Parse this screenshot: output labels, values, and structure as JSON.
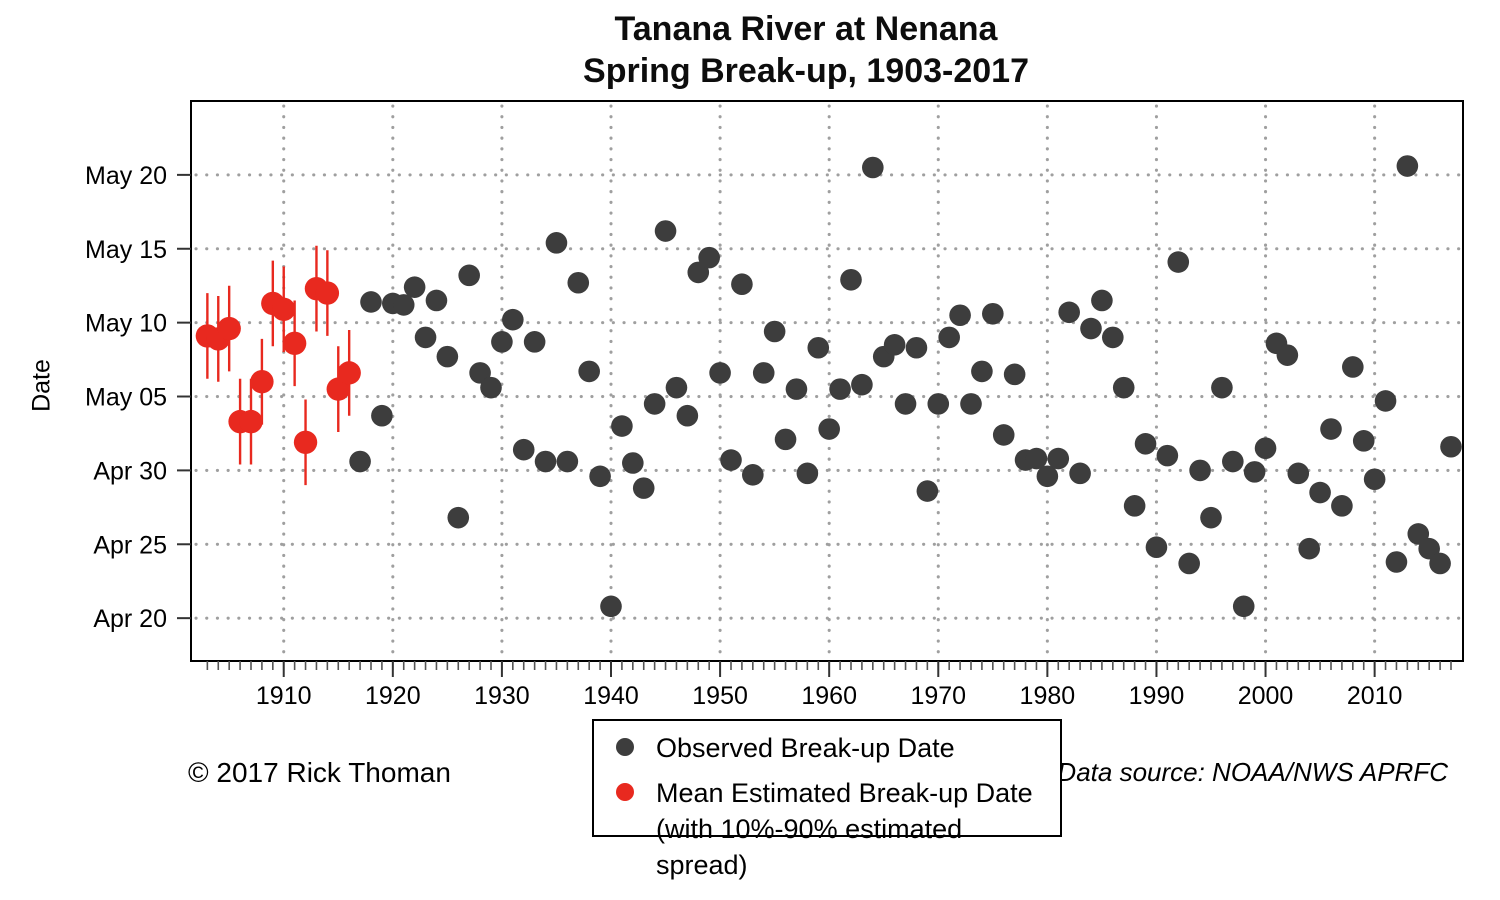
{
  "title": {
    "line1": "Tanana River at Nenana",
    "line2": "Spring Break-up, 1903-2017"
  },
  "y_axis_title": "Date",
  "footer": {
    "left": "© 2017 Rick Thoman",
    "right": "Data source: NOAA/NWS APRFC"
  },
  "legend_note": "(with 10%-90% estimated spread)",
  "chart_data": {
    "type": "scatter",
    "title": "Tanana River at Nenana — Spring Break-up, 1903-2017",
    "xlabel": "",
    "ylabel": "Date",
    "grid": true,
    "legend_position": "bottom-center",
    "x_range": [
      1901.5,
      2018.1
    ],
    "y_units": "days after April 20",
    "y_range": [
      -2.9,
      35.0
    ],
    "x_major_ticks": [
      1910,
      1920,
      1930,
      1940,
      1950,
      1960,
      1970,
      1980,
      1990,
      2000,
      2010
    ],
    "x_minor_ticks": {
      "from": 1903,
      "to": 2017,
      "step": 1
    },
    "y_ticks": [
      {
        "label": "May 20",
        "d": 30
      },
      {
        "label": "May 15",
        "d": 25
      },
      {
        "label": "May 10",
        "d": 20
      },
      {
        "label": "May 05",
        "d": 15
      },
      {
        "label": "Apr 30",
        "d": 10
      },
      {
        "label": "Apr 25",
        "d": 5
      },
      {
        "label": "Apr 20",
        "d": 0
      }
    ],
    "series": [
      {
        "name": "Observed Break-up Date",
        "color": "#3d3d3d",
        "marker": "circle",
        "marker_radius": 10.8,
        "points": [
          {
            "year": 1917,
            "date": "Apr 30",
            "d": 10.6
          },
          {
            "year": 1918,
            "date": "May 11",
            "d": 21.4
          },
          {
            "year": 1919,
            "date": "May 3",
            "d": 13.7
          },
          {
            "year": 1920,
            "date": "May 11",
            "d": 21.3
          },
          {
            "year": 1921,
            "date": "May 11",
            "d": 21.2
          },
          {
            "year": 1922,
            "date": "May 12",
            "d": 22.4
          },
          {
            "year": 1923,
            "date": "May 9",
            "d": 19.0
          },
          {
            "year": 1924,
            "date": "May 11",
            "d": 21.5
          },
          {
            "year": 1925,
            "date": "May 7",
            "d": 17.7
          },
          {
            "year": 1926,
            "date": "Apr 26",
            "d": 6.8
          },
          {
            "year": 1927,
            "date": "May 13",
            "d": 23.2
          },
          {
            "year": 1928,
            "date": "May 6",
            "d": 16.6
          },
          {
            "year": 1929,
            "date": "May 5",
            "d": 15.6
          },
          {
            "year": 1930,
            "date": "May 8",
            "d": 18.7
          },
          {
            "year": 1931,
            "date": "May 10",
            "d": 20.2
          },
          {
            "year": 1932,
            "date": "May 1",
            "d": 11.4
          },
          {
            "year": 1933,
            "date": "May 8",
            "d": 18.7
          },
          {
            "year": 1934,
            "date": "Apr 30",
            "d": 10.6
          },
          {
            "year": 1935,
            "date": "May 15",
            "d": 25.4
          },
          {
            "year": 1936,
            "date": "Apr 30",
            "d": 10.6
          },
          {
            "year": 1937,
            "date": "May 12",
            "d": 22.7
          },
          {
            "year": 1938,
            "date": "May 6",
            "d": 16.7
          },
          {
            "year": 1939,
            "date": "Apr 29",
            "d": 9.6
          },
          {
            "year": 1940,
            "date": "Apr 20",
            "d": 0.8
          },
          {
            "year": 1941,
            "date": "May 3",
            "d": 13.0
          },
          {
            "year": 1942,
            "date": "Apr 30",
            "d": 10.5
          },
          {
            "year": 1943,
            "date": "Apr 28",
            "d": 8.8
          },
          {
            "year": 1944,
            "date": "May 4",
            "d": 14.5
          },
          {
            "year": 1945,
            "date": "May 16",
            "d": 26.2
          },
          {
            "year": 1946,
            "date": "May 5",
            "d": 15.6
          },
          {
            "year": 1947,
            "date": "May 3",
            "d": 13.7
          },
          {
            "year": 1948,
            "date": "May 13",
            "d": 23.4
          },
          {
            "year": 1949,
            "date": "May 14",
            "d": 24.4
          },
          {
            "year": 1950,
            "date": "May 6",
            "d": 16.6
          },
          {
            "year": 1951,
            "date": "Apr 30",
            "d": 10.7
          },
          {
            "year": 1952,
            "date": "May 12",
            "d": 22.6
          },
          {
            "year": 1953,
            "date": "Apr 29",
            "d": 9.7
          },
          {
            "year": 1954,
            "date": "May 6",
            "d": 16.6
          },
          {
            "year": 1955,
            "date": "May 9",
            "d": 19.4
          },
          {
            "year": 1956,
            "date": "May 2",
            "d": 12.1
          },
          {
            "year": 1957,
            "date": "May 5",
            "d": 15.5
          },
          {
            "year": 1958,
            "date": "Apr 29",
            "d": 9.8
          },
          {
            "year": 1959,
            "date": "May 8",
            "d": 18.3
          },
          {
            "year": 1960,
            "date": "May 2",
            "d": 12.8
          },
          {
            "year": 1961,
            "date": "May 5",
            "d": 15.5
          },
          {
            "year": 1962,
            "date": "May 12",
            "d": 22.9
          },
          {
            "year": 1963,
            "date": "May 5",
            "d": 15.8
          },
          {
            "year": 1964,
            "date": "May 20",
            "d": 30.5
          },
          {
            "year": 1965,
            "date": "May 7",
            "d": 17.7
          },
          {
            "year": 1966,
            "date": "May 8",
            "d": 18.5
          },
          {
            "year": 1967,
            "date": "May 4",
            "d": 14.5
          },
          {
            "year": 1968,
            "date": "May 8",
            "d": 18.3
          },
          {
            "year": 1969,
            "date": "Apr 28",
            "d": 8.6
          },
          {
            "year": 1970,
            "date": "May 4",
            "d": 14.5
          },
          {
            "year": 1971,
            "date": "May 8",
            "d": 19.0
          },
          {
            "year": 1972,
            "date": "May 10",
            "d": 20.5
          },
          {
            "year": 1973,
            "date": "May 4",
            "d": 14.5
          },
          {
            "year": 1974,
            "date": "May 6",
            "d": 16.7
          },
          {
            "year": 1975,
            "date": "May 10",
            "d": 20.6
          },
          {
            "year": 1976,
            "date": "May 2",
            "d": 12.4
          },
          {
            "year": 1977,
            "date": "May 6",
            "d": 16.5
          },
          {
            "year": 1978,
            "date": "Apr 30",
            "d": 10.7
          },
          {
            "year": 1979,
            "date": "Apr 30",
            "d": 10.8
          },
          {
            "year": 1980,
            "date": "Apr 29",
            "d": 9.6
          },
          {
            "year": 1981,
            "date": "Apr 30",
            "d": 10.8
          },
          {
            "year": 1982,
            "date": "May 10",
            "d": 20.7
          },
          {
            "year": 1983,
            "date": "Apr 29",
            "d": 9.8
          },
          {
            "year": 1984,
            "date": "May 9",
            "d": 19.6
          },
          {
            "year": 1985,
            "date": "May 11",
            "d": 21.5
          },
          {
            "year": 1986,
            "date": "May 8",
            "d": 19.0
          },
          {
            "year": 1987,
            "date": "May 5",
            "d": 15.6
          },
          {
            "year": 1988,
            "date": "Apr 27",
            "d": 7.6
          },
          {
            "year": 1989,
            "date": "May 1",
            "d": 11.8
          },
          {
            "year": 1990,
            "date": "Apr 24",
            "d": 4.8
          },
          {
            "year": 1991,
            "date": "May 1",
            "d": 11.0
          },
          {
            "year": 1992,
            "date": "May 14",
            "d": 24.1
          },
          {
            "year": 1993,
            "date": "Apr 23",
            "d": 3.7
          },
          {
            "year": 1994,
            "date": "Apr 29",
            "d": 10.0
          },
          {
            "year": 1995,
            "date": "Apr 26",
            "d": 6.8
          },
          {
            "year": 1996,
            "date": "May 5",
            "d": 15.6
          },
          {
            "year": 1997,
            "date": "Apr 30",
            "d": 10.6
          },
          {
            "year": 1998,
            "date": "Apr 20",
            "d": 0.8
          },
          {
            "year": 1999,
            "date": "Apr 29",
            "d": 9.9
          },
          {
            "year": 2000,
            "date": "May 1",
            "d": 11.5
          },
          {
            "year": 2001,
            "date": "May 8",
            "d": 18.6
          },
          {
            "year": 2002,
            "date": "May 7",
            "d": 17.8
          },
          {
            "year": 2003,
            "date": "Apr 29",
            "d": 9.8
          },
          {
            "year": 2004,
            "date": "Apr 24",
            "d": 4.7
          },
          {
            "year": 2005,
            "date": "Apr 28",
            "d": 8.5
          },
          {
            "year": 2006,
            "date": "May 2",
            "d": 12.8
          },
          {
            "year": 2007,
            "date": "Apr 27",
            "d": 7.6
          },
          {
            "year": 2008,
            "date": "May 6",
            "d": 17.0
          },
          {
            "year": 2009,
            "date": "May 1",
            "d": 12.0
          },
          {
            "year": 2010,
            "date": "Apr 29",
            "d": 9.4
          },
          {
            "year": 2011,
            "date": "May 4",
            "d": 14.7
          },
          {
            "year": 2012,
            "date": "Apr 23",
            "d": 3.8
          },
          {
            "year": 2013,
            "date": "May 20",
            "d": 30.6
          },
          {
            "year": 2014,
            "date": "Apr 25",
            "d": 5.7
          },
          {
            "year": 2015,
            "date": "Apr 24",
            "d": 4.7
          },
          {
            "year": 2016,
            "date": "Apr 23",
            "d": 3.7
          },
          {
            "year": 2017,
            "date": "May 1",
            "d": 11.6
          }
        ]
      },
      {
        "name": "Mean Estimated Break-up Date",
        "color": "#e8291f",
        "marker": "circle",
        "marker_radius": 11.7,
        "error_bars": {
          "label": "10%-90% estimated spread",
          "minus_days": 2.9,
          "plus_days": 2.9
        },
        "points": [
          {
            "year": 1903,
            "date": "May 9",
            "d": 19.1
          },
          {
            "year": 1904,
            "date": "May 9",
            "d": 18.9
          },
          {
            "year": 1905,
            "date": "May 10",
            "d": 19.6
          },
          {
            "year": 1906,
            "date": "May 3",
            "d": 13.3
          },
          {
            "year": 1907,
            "date": "May 3",
            "d": 13.3
          },
          {
            "year": 1908,
            "date": "May 6",
            "d": 16.0
          },
          {
            "year": 1909,
            "date": "May 11",
            "d": 21.3
          },
          {
            "year": 1910,
            "date": "May 11",
            "d": 20.9
          },
          {
            "year": 1911,
            "date": "May 9",
            "d": 18.6
          },
          {
            "year": 1912,
            "date": "May 2",
            "d": 11.9
          },
          {
            "year": 1913,
            "date": "May 12",
            "d": 22.3
          },
          {
            "year": 1914,
            "date": "May 12",
            "d": 22.0
          },
          {
            "year": 1915,
            "date": "May 6",
            "d": 15.5
          },
          {
            "year": 1916,
            "date": "May 7",
            "d": 16.6
          }
        ]
      }
    ]
  }
}
